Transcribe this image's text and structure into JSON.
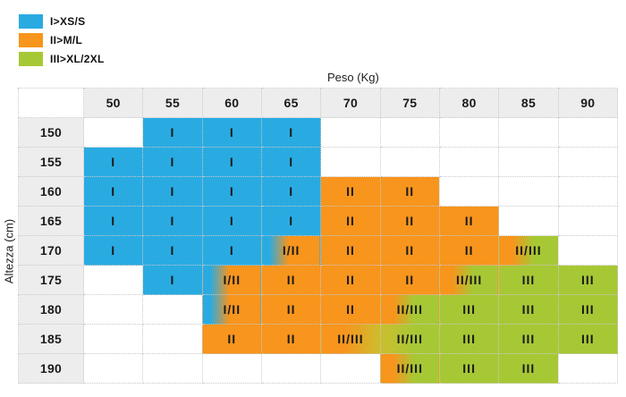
{
  "colors": {
    "blue": "#29ABE2",
    "orange": "#F7951D",
    "green": "#A7C835",
    "yellow_mid": "#CCBE2D",
    "header_bg": "#EDEDED",
    "border": "#C9C9C9",
    "text": "#1A1A1A"
  },
  "chart_data": {
    "type": "heatmap",
    "title": "",
    "xlabel": "Peso (Kg)",
    "ylabel": "Altezza (cm)",
    "legend_position": "top-left",
    "legend": [
      {
        "label": "I>XS/S",
        "color": "#29ABE2"
      },
      {
        "label": "II>M/L",
        "color": "#F7951D"
      },
      {
        "label": "III>XL/2XL",
        "color": "#A7C835"
      }
    ],
    "columns": [
      "50",
      "55",
      "60",
      "65",
      "70",
      "75",
      "80",
      "85",
      "90"
    ],
    "rows": [
      "150",
      "155",
      "160",
      "165",
      "170",
      "175",
      "180",
      "185",
      "190"
    ],
    "cells": [
      [
        "",
        "I",
        "I",
        "I",
        "",
        "",
        "",
        "",
        ""
      ],
      [
        "I",
        "I",
        "I",
        "I",
        "",
        "",
        "",
        "",
        ""
      ],
      [
        "I",
        "I",
        "I",
        "I",
        "II",
        "II",
        "",
        "",
        ""
      ],
      [
        "I",
        "I",
        "I",
        "I",
        "II",
        "II",
        "II",
        "",
        ""
      ],
      [
        "I",
        "I",
        "I",
        "I/II",
        "II",
        "II",
        "II",
        "II/III",
        ""
      ],
      [
        "",
        "I",
        "I/II",
        "II",
        "II",
        "II",
        "II/III",
        "III",
        "III"
      ],
      [
        "",
        "",
        "I/II",
        "II",
        "II",
        "II/III",
        "III",
        "III",
        "III"
      ],
      [
        "",
        "",
        "II",
        "II",
        "II/III",
        "II/III",
        "III",
        "III",
        "III"
      ],
      [
        "",
        "",
        "",
        "",
        "",
        "II/III",
        "III",
        "III",
        ""
      ]
    ],
    "fills": [
      [
        "",
        "b",
        "b",
        "b",
        "",
        "",
        "",
        "",
        ""
      ],
      [
        "b",
        "b",
        "b",
        "b",
        "",
        "",
        "",
        "",
        ""
      ],
      [
        "b",
        "b",
        "b",
        "b",
        "o",
        "o",
        "",
        "",
        ""
      ],
      [
        "b",
        "b",
        "b",
        "b",
        "o",
        "o",
        "o",
        "",
        ""
      ],
      [
        "b",
        "b",
        "b",
        "bo",
        "o",
        "o",
        "o",
        "og",
        ""
      ],
      [
        "",
        "b",
        "bo",
        "o",
        "o",
        "o",
        "og",
        "g",
        "g"
      ],
      [
        "",
        "",
        "bo",
        "o",
        "o",
        "og",
        "g",
        "g",
        "g"
      ],
      [
        "",
        "",
        "o",
        "o",
        "oy",
        "yg",
        "g",
        "g",
        "g"
      ],
      [
        "",
        "",
        "",
        "",
        "",
        "og",
        "g",
        "g",
        ""
      ]
    ]
  }
}
